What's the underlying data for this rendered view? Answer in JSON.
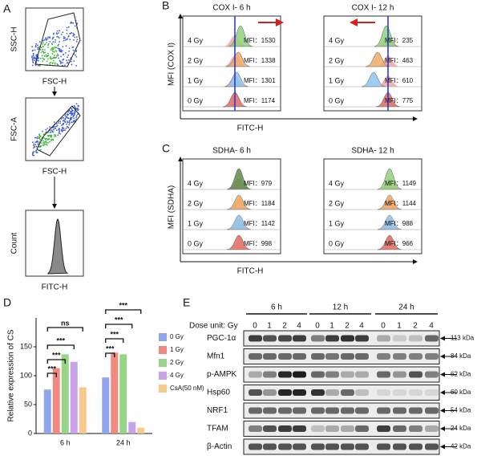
{
  "panel_a": {
    "label": "A",
    "plots": [
      {
        "y_axis_label": "SSC-H",
        "x_axis_label": "FSC-H"
      },
      {
        "y_axis_label": "FSC-A",
        "x_axis_label": "FSC-H"
      },
      {
        "y_axis_label": "Count",
        "x_axis_label": "FITC-H"
      }
    ]
  },
  "panel_b": {
    "label": "B",
    "y_axis_label": "MFI (COX I)",
    "x_axis_label": "FITC-H",
    "plots": [
      {
        "title": "COX I- 6 h",
        "rows": [
          {
            "dose": "4 Gy",
            "mfi": "MFI：1530"
          },
          {
            "dose": "2 Gy",
            "mfi": "MFI：1338"
          },
          {
            "dose": "1 Gy",
            "mfi": "MFI：1301"
          },
          {
            "dose": "0 Gy",
            "mfi": "MFI：1174"
          }
        ]
      },
      {
        "title": "COX I- 12 h",
        "rows": [
          {
            "dose": "4 Gy",
            "mfi": "MFI：235"
          },
          {
            "dose": "2 Gy",
            "mfi": "MFI：463"
          },
          {
            "dose": "1 Gy",
            "mfi": "MFI：610"
          },
          {
            "dose": "0 Gy",
            "mfi": "MFI：775"
          }
        ]
      }
    ]
  },
  "panel_c": {
    "label": "C",
    "y_axis_label": "MFI (SDHA)",
    "x_axis_label": "FITC-H",
    "plots": [
      {
        "title": "SDHA- 6 h",
        "rows": [
          {
            "dose": "4 Gy",
            "mfi": "MFI：979"
          },
          {
            "dose": "2 Gy",
            "mfi": "MFI：1184"
          },
          {
            "dose": "1 Gy",
            "mfi": "MFI：1142"
          },
          {
            "dose": "0 Gy",
            "mfi": "MFI：998"
          }
        ]
      },
      {
        "title": "SDHA- 12 h",
        "rows": [
          {
            "dose": "4 Gy",
            "mfi": "MFI：1149"
          },
          {
            "dose": "2 Gy",
            "mfi": "MFI：1144"
          },
          {
            "dose": "1 Gy",
            "mfi": "MFI：988"
          },
          {
            "dose": "0 Gy",
            "mfi": "MFI：966"
          }
        ]
      }
    ]
  },
  "panel_d": {
    "label": "D"
  },
  "chart_data": {
    "type": "bar",
    "y_axis_label": "Relative expression of CS",
    "categories": [
      "6 h",
      "24 h"
    ],
    "series": [
      {
        "name": "0 Gy",
        "color": "#8fa6ef",
        "values": [
          76,
          97
        ]
      },
      {
        "name": "1 Gy",
        "color": "#f08a80",
        "values": [
          113,
          140
        ]
      },
      {
        "name": "2 Gy",
        "color": "#98d488",
        "values": [
          137,
          137
        ]
      },
      {
        "name": "4 Gy",
        "color": "#c9a3ea",
        "values": [
          124,
          20
        ]
      },
      {
        "name": "CsA(50 nM)",
        "color": "#f6c98e",
        "values": [
          80,
          10
        ]
      }
    ],
    "ylim": [
      0,
      200
    ],
    "yticks": [
      0,
      50,
      100,
      150
    ],
    "annotations": [
      "***",
      "***",
      "***",
      "ns",
      "***",
      "***",
      "***",
      "***"
    ]
  },
  "panel_e": {
    "label": "E",
    "dose_unit": "Dose unit: Gy",
    "times": [
      "6 h",
      "12 h",
      "24 h"
    ],
    "lanes": [
      "0",
      "1",
      "2",
      "4",
      "0",
      "1",
      "2",
      "4",
      "0",
      "1",
      "2",
      "4"
    ],
    "proteins": [
      {
        "name": "PGC-1α",
        "size": "113 kDa"
      },
      {
        "name": "Mfn1",
        "size": "84 kDa"
      },
      {
        "name": "p-AMPK",
        "size": "62 kDa"
      },
      {
        "name": "Hsp60",
        "size": "60 kDa"
      },
      {
        "name": "NRF1",
        "size": "54 kDa"
      },
      {
        "name": "TFAM",
        "size": "24 kDa"
      },
      {
        "name": "β-Actin",
        "size": "42 kDa"
      }
    ]
  }
}
